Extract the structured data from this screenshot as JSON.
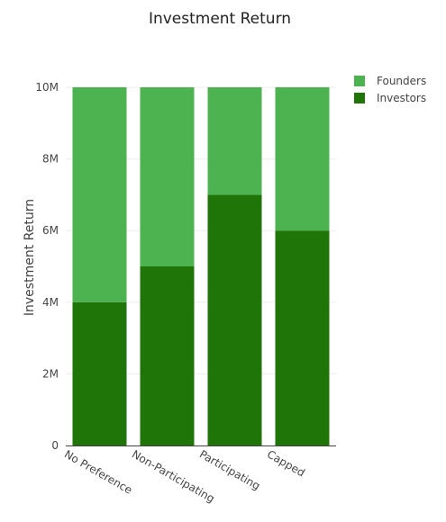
{
  "chart_data": {
    "type": "bar",
    "stacked": true,
    "title": "Investment Return",
    "ylabel": "Investment Return",
    "xlabel": "",
    "categories": [
      "No Preference",
      "Non-Participating",
      "Participating",
      "Capped"
    ],
    "series": [
      {
        "name": "Investors",
        "values": [
          4000000,
          5000000,
          7000000,
          6000000
        ],
        "color": "#1f7507"
      },
      {
        "name": "Founders",
        "values": [
          6000000,
          5000000,
          3000000,
          4000000
        ],
        "color": "#4db350"
      }
    ],
    "ylim": [
      0,
      10000000
    ],
    "yticks": [
      {
        "value": 0,
        "label": "0"
      },
      {
        "value": 2000000,
        "label": "2M"
      },
      {
        "value": 4000000,
        "label": "4M"
      },
      {
        "value": 6000000,
        "label": "6M"
      },
      {
        "value": 8000000,
        "label": "8M"
      },
      {
        "value": 10000000,
        "label": "10M"
      }
    ],
    "legend": [
      {
        "name": "Founders",
        "color": "#4db350"
      },
      {
        "name": "Investors",
        "color": "#1f7507"
      }
    ],
    "legend_position": "top-right",
    "grid": true
  }
}
